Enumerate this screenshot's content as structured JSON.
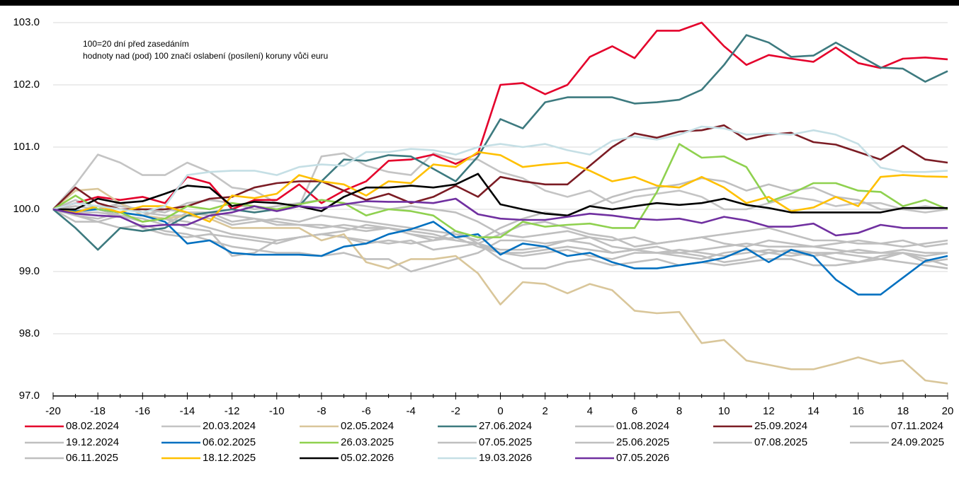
{
  "chart_data": {
    "type": "line",
    "annotations": [
      "100=20 dní před zasedáním",
      "hodnoty nad (pod) 100 značí oslabení (posílení) koruny vůči euru"
    ],
    "x": [
      -20,
      -19,
      -18,
      -17,
      -16,
      -15,
      -14,
      -13,
      -12,
      -11,
      -10,
      -9,
      -8,
      -7,
      -6,
      -5,
      -4,
      -3,
      -2,
      -1,
      0,
      1,
      2,
      3,
      4,
      5,
      6,
      7,
      8,
      9,
      10,
      11,
      12,
      13,
      14,
      15,
      16,
      17,
      18,
      19,
      20
    ],
    "xlim": [
      -20,
      20
    ],
    "xticks": [
      -20,
      -18,
      -16,
      -14,
      -12,
      -10,
      -8,
      -6,
      -4,
      -2,
      0,
      2,
      4,
      6,
      8,
      10,
      12,
      14,
      16,
      18,
      20
    ],
    "ylim": [
      97,
      103
    ],
    "yticks": [
      {
        "value": 97,
        "label": "97.0"
      },
      {
        "value": 98,
        "label": "98.0"
      },
      {
        "value": 99,
        "label": "99.0"
      },
      {
        "value": 100,
        "label": "100.0"
      },
      {
        "value": 101,
        "label": "101.0"
      },
      {
        "value": 102,
        "label": "102.0"
      },
      {
        "value": 103,
        "label": "103.0"
      }
    ],
    "grid": true,
    "series": [
      {
        "name": "08.02.2024",
        "color": "#e4002b",
        "values": [
          100,
          100.1,
          100.2,
          100.15,
          100.2,
          100.1,
          100.52,
          100.42,
          100.0,
          100.15,
          100.15,
          100.4,
          100.1,
          100.3,
          100.45,
          100.78,
          100.8,
          100.88,
          100.73,
          100.9,
          102.0,
          102.03,
          101.85,
          102.0,
          102.45,
          102.62,
          102.43,
          102.87,
          102.87,
          103.0,
          102.62,
          102.32,
          102.48,
          102.42,
          102.37,
          102.6,
          102.35,
          102.27,
          102.42,
          102.44,
          102.41
        ]
      },
      {
        "name": "20.03.2024",
        "color": "#c4c4c4",
        "values": [
          100,
          100.4,
          100.88,
          100.75,
          100.55,
          100.55,
          100.75,
          100.6,
          100.35,
          100.3,
          100.1,
          100.05,
          100.85,
          100.9,
          100.7,
          100.6,
          100.55,
          100.9,
          100.8,
          100.8,
          100.6,
          100.5,
          100.3,
          100.2,
          100.3,
          100.1,
          100.2,
          100.25,
          100.3,
          100.2,
          100.0,
          100.0,
          100.1,
          100.2,
          100.15,
          100.05,
          100.1,
          100.1,
          100.0,
          99.95,
          100.0
        ]
      },
      {
        "name": "02.05.2024",
        "color": "#d9c69a",
        "values": [
          100,
          100.3,
          100.33,
          100.1,
          99.9,
          99.85,
          99.9,
          99.85,
          99.7,
          99.7,
          99.7,
          99.7,
          99.5,
          99.6,
          99.15,
          99.05,
          99.2,
          99.2,
          99.25,
          98.97,
          98.47,
          98.83,
          98.8,
          98.65,
          98.8,
          98.7,
          98.37,
          98.33,
          98.35,
          97.85,
          97.9,
          97.57,
          97.5,
          97.43,
          97.43,
          97.52,
          97.62,
          97.52,
          97.57,
          97.25,
          97.2
        ]
      },
      {
        "name": "27.06.2024",
        "color": "#3d7a7f",
        "values": [
          100,
          99.7,
          99.35,
          99.7,
          99.65,
          99.7,
          99.9,
          99.95,
          100.0,
          99.95,
          100.0,
          100.05,
          100.45,
          100.8,
          100.78,
          100.87,
          100.85,
          100.65,
          100.45,
          100.85,
          101.45,
          101.3,
          101.72,
          101.8,
          101.8,
          101.8,
          101.7,
          101.72,
          101.76,
          101.92,
          102.32,
          102.8,
          102.68,
          102.45,
          102.47,
          102.68,
          102.48,
          102.28,
          102.26,
          102.05,
          102.22
        ]
      },
      {
        "name": "01.08.2024",
        "color": "#bfbfbf",
        "values": [
          100,
          99.9,
          99.8,
          99.7,
          99.75,
          99.65,
          99.6,
          99.5,
          99.4,
          99.35,
          99.3,
          99.3,
          99.25,
          99.3,
          99.2,
          99.2,
          99.0,
          99.1,
          99.2,
          99.3,
          99.5,
          99.5,
          99.45,
          99.5,
          99.55,
          99.4,
          99.35,
          99.3,
          99.3,
          99.25,
          99.15,
          99.2,
          99.3,
          99.35,
          99.3,
          99.3,
          99.25,
          99.2,
          99.3,
          99.2,
          99.1
        ]
      },
      {
        "name": "25.09.2024",
        "color": "#7b1c24",
        "values": [
          100,
          100.35,
          100.1,
          100.0,
          100.0,
          100.0,
          100.05,
          100.17,
          100.2,
          100.35,
          100.42,
          100.45,
          100.45,
          100.3,
          100.15,
          100.25,
          100.1,
          100.2,
          100.38,
          100.2,
          100.52,
          100.45,
          100.4,
          100.4,
          100.7,
          101.0,
          101.22,
          101.15,
          101.25,
          101.27,
          101.35,
          101.12,
          101.2,
          101.23,
          101.08,
          101.04,
          100.92,
          100.8,
          101.02,
          100.8,
          100.75
        ]
      },
      {
        "name": "07.11.2024",
        "color": "#bfbfbf",
        "values": [
          100,
          100.15,
          100.0,
          99.9,
          99.8,
          99.85,
          99.7,
          99.65,
          99.25,
          99.3,
          99.5,
          99.55,
          99.6,
          99.55,
          99.5,
          99.45,
          99.5,
          99.35,
          99.4,
          99.45,
          99.2,
          99.05,
          99.05,
          99.15,
          99.2,
          99.1,
          99.15,
          99.2,
          99.1,
          99.15,
          99.1,
          99.15,
          99.2,
          99.2,
          99.1,
          99.1,
          99.15,
          99.2,
          99.15,
          99.1,
          99.05
        ]
      },
      {
        "name": "19.12.2024",
        "color": "#bfbfbf",
        "values": [
          100,
          99.95,
          99.95,
          99.9,
          99.85,
          99.75,
          99.95,
          99.95,
          99.8,
          99.85,
          99.75,
          99.75,
          99.7,
          99.75,
          99.7,
          99.7,
          99.65,
          99.6,
          99.5,
          99.45,
          99.35,
          99.35,
          99.4,
          99.5,
          99.45,
          99.3,
          99.35,
          99.4,
          99.3,
          99.35,
          99.4,
          99.45,
          99.4,
          99.4,
          99.4,
          99.35,
          99.3,
          99.3,
          99.35,
          99.3,
          99.3
        ]
      },
      {
        "name": "06.02.2025",
        "color": "#0070c0",
        "values": [
          100,
          99.97,
          100.0,
          99.95,
          99.9,
          99.8,
          99.45,
          99.5,
          99.3,
          99.27,
          99.27,
          99.27,
          99.25,
          99.4,
          99.45,
          99.6,
          99.68,
          99.8,
          99.55,
          99.6,
          99.27,
          99.45,
          99.4,
          99.25,
          99.3,
          99.15,
          99.05,
          99.05,
          99.1,
          99.15,
          99.22,
          99.37,
          99.15,
          99.35,
          99.25,
          98.87,
          98.63,
          98.63,
          98.9,
          99.17,
          99.25
        ]
      },
      {
        "name": "26.03.2025",
        "color": "#8fd14f",
        "values": [
          100,
          100.22,
          100.0,
          99.95,
          99.8,
          99.85,
          100.05,
          100.0,
          100.1,
          100.05,
          100.0,
          100.08,
          100.15,
          100.1,
          99.9,
          100.0,
          99.97,
          99.9,
          99.65,
          99.55,
          99.55,
          99.8,
          99.72,
          99.75,
          99.77,
          99.7,
          99.7,
          100.28,
          101.05,
          100.83,
          100.85,
          100.68,
          100.12,
          100.25,
          100.42,
          100.42,
          100.3,
          100.28,
          100.05,
          100.15,
          100.0
        ]
      },
      {
        "name": "07.05.2025",
        "color": "#bfbfbf",
        "values": [
          100,
          99.8,
          99.8,
          99.9,
          99.7,
          99.6,
          99.55,
          99.6,
          99.55,
          99.5,
          99.45,
          99.55,
          99.6,
          99.55,
          99.45,
          99.5,
          99.45,
          99.5,
          99.65,
          99.45,
          99.6,
          99.75,
          99.8,
          99.7,
          99.6,
          99.55,
          99.4,
          99.45,
          99.5,
          99.55,
          99.6,
          99.65,
          99.7,
          99.6,
          99.5,
          99.5,
          99.45,
          99.45,
          99.5,
          99.4,
          99.45
        ]
      },
      {
        "name": "25.06.2025",
        "color": "#bfbfbf",
        "values": [
          100,
          100.05,
          100.0,
          99.95,
          99.9,
          100.0,
          99.95,
          99.9,
          99.75,
          99.8,
          99.85,
          99.8,
          99.9,
          99.85,
          99.8,
          99.75,
          99.7,
          99.65,
          99.6,
          99.5,
          99.7,
          99.85,
          99.95,
          99.9,
          100.05,
          100.2,
          100.3,
          100.35,
          100.4,
          100.5,
          100.45,
          100.3,
          100.4,
          100.3,
          100.35,
          100.2,
          100.15,
          100.0,
          100.0,
          100.05,
          100.0
        ]
      },
      {
        "name": "07.08.2025",
        "color": "#bfbfbf",
        "values": [
          100,
          100.1,
          100.05,
          100.05,
          100.0,
          99.95,
          100.1,
          100.15,
          100.1,
          100.0,
          100.05,
          100.1,
          100.15,
          100.1,
          100.05,
          100.0,
          100.05,
          100.0,
          99.95,
          99.8,
          99.6,
          99.55,
          99.6,
          99.65,
          99.55,
          99.5,
          99.55,
          99.45,
          99.5,
          99.55,
          99.45,
          99.4,
          99.5,
          99.45,
          99.4,
          99.45,
          99.5,
          99.45,
          99.4,
          99.45,
          99.5
        ]
      },
      {
        "name": "24.09.2025",
        "color": "#bfbfbf",
        "values": [
          100,
          99.9,
          99.85,
          99.95,
          99.9,
          99.85,
          99.8,
          99.7,
          99.6,
          99.55,
          99.5,
          99.55,
          99.6,
          99.65,
          99.75,
          99.7,
          99.6,
          99.5,
          99.55,
          99.4,
          99.3,
          99.25,
          99.3,
          99.35,
          99.25,
          99.2,
          99.3,
          99.3,
          99.25,
          99.2,
          99.3,
          99.35,
          99.3,
          99.25,
          99.3,
          99.2,
          99.15,
          99.25,
          99.3,
          99.15,
          99.2
        ]
      },
      {
        "name": "06.11.2025",
        "color": "#bfbfbf",
        "values": [
          100,
          100.05,
          100.0,
          100.1,
          99.95,
          99.9,
          99.9,
          99.95,
          99.9,
          99.85,
          99.8,
          99.75,
          99.75,
          99.7,
          99.65,
          99.7,
          99.6,
          99.55,
          99.5,
          99.45,
          99.3,
          99.3,
          99.35,
          99.4,
          99.35,
          99.3,
          99.35,
          99.3,
          99.35,
          99.3,
          99.25,
          99.3,
          99.35,
          99.3,
          99.25,
          99.3,
          99.35,
          99.3,
          99.3,
          99.25,
          99.3
        ]
      },
      {
        "name": "18.12.2025",
        "color": "#ffc000",
        "values": [
          100,
          99.95,
          100.05,
          99.95,
          100.05,
          100.05,
          99.95,
          99.8,
          100.22,
          100.18,
          100.25,
          100.55,
          100.45,
          100.4,
          100.22,
          100.45,
          100.42,
          100.72,
          100.68,
          100.92,
          100.87,
          100.68,
          100.72,
          100.75,
          100.62,
          100.45,
          100.52,
          100.38,
          100.35,
          100.52,
          100.35,
          100.1,
          100.2,
          99.97,
          100.03,
          100.2,
          100.05,
          100.52,
          100.55,
          100.53,
          100.52
        ]
      },
      {
        "name": "05.02.2026",
        "color": "#000000",
        "values": [
          100,
          100.0,
          100.17,
          100.1,
          100.13,
          100.25,
          100.38,
          100.35,
          100.05,
          100.12,
          100.1,
          100.05,
          99.97,
          100.2,
          100.35,
          100.35,
          100.38,
          100.35,
          100.4,
          100.57,
          100.08,
          100.0,
          99.93,
          99.9,
          100.05,
          100.0,
          100.05,
          100.1,
          100.07,
          100.1,
          100.17,
          100.07,
          100.02,
          99.95,
          99.95,
          99.95,
          99.95,
          99.95,
          100.02,
          100.02,
          100.02
        ]
      },
      {
        "name": "19.03.2026",
        "color": "#c5dfe5",
        "values": [
          100,
          100.1,
          100.05,
          100.0,
          99.95,
          100.05,
          100.55,
          100.6,
          100.62,
          100.62,
          100.55,
          100.68,
          100.72,
          100.7,
          100.92,
          100.92,
          100.97,
          100.95,
          100.88,
          101.0,
          101.05,
          101.0,
          101.05,
          100.95,
          100.88,
          101.1,
          101.17,
          101.12,
          101.2,
          101.33,
          101.3,
          101.2,
          101.22,
          101.2,
          101.27,
          101.2,
          101.05,
          100.67,
          100.6,
          100.6,
          100.62
        ]
      },
      {
        "name": "07.05.2026",
        "color": "#7030a0",
        "values": [
          100,
          99.93,
          99.9,
          99.88,
          99.72,
          99.75,
          99.75,
          99.9,
          99.95,
          100.05,
          99.97,
          100.05,
          100.02,
          100.08,
          100.13,
          100.12,
          100.12,
          100.1,
          100.17,
          99.92,
          99.85,
          99.83,
          99.83,
          99.88,
          99.93,
          99.9,
          99.85,
          99.83,
          99.85,
          99.78,
          99.88,
          99.82,
          99.72,
          99.72,
          99.77,
          99.58,
          99.62,
          99.75,
          99.7,
          99.7,
          99.7
        ]
      }
    ]
  }
}
